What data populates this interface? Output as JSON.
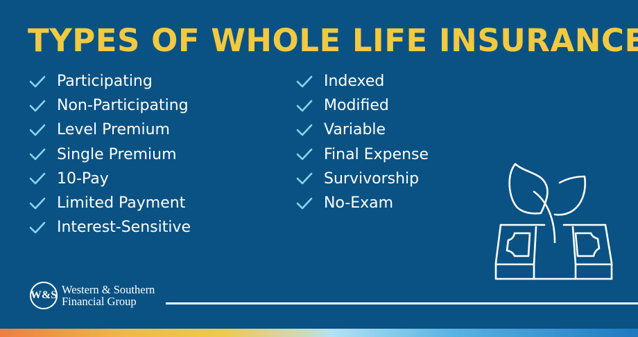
{
  "title": "TYPES OF WHOLE LIFE INSURANCE",
  "column_left": [
    "Participating",
    "Non-Participating",
    "Level Premium",
    "Single Premium",
    "10-Pay",
    "Limited Payment",
    "Interest-Sensitive"
  ],
  "column_right": [
    "Indexed",
    "Modified",
    "Variable",
    "Final Expense",
    "Survivorship",
    "No-Exam"
  ],
  "list_icon": "check-icon",
  "illustration": "plant-growing-from-money-icon",
  "logo": {
    "seal": "W&S",
    "line1": "Western & Southern",
    "line2": "Financial Group"
  },
  "colors": {
    "background": "#0a5284",
    "title": "#f2c940",
    "check": "#8fd3f2"
  }
}
